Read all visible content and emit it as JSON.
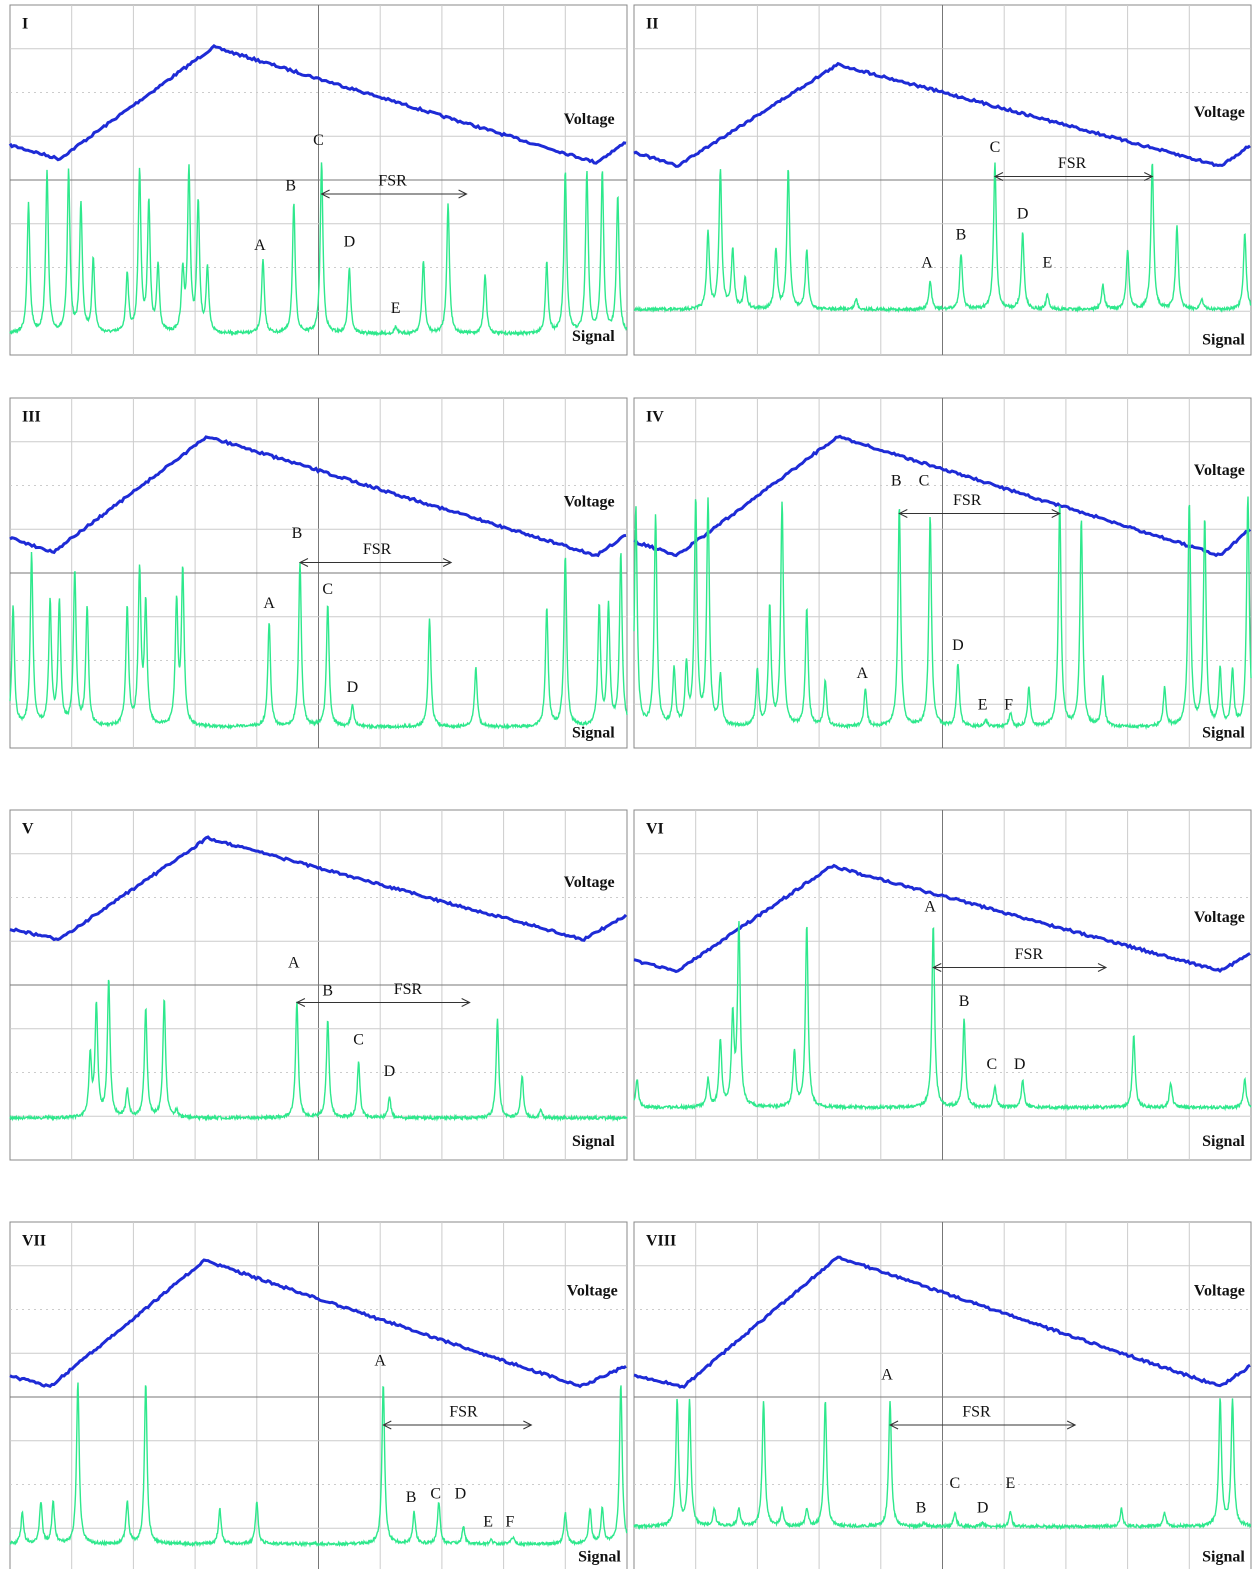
{
  "panels": [
    {
      "label": "I",
      "voltage": "Voltage",
      "signal": "Signal",
      "fsr": "FSR",
      "peaks": [
        "A",
        "B",
        "C",
        "D",
        "E"
      ]
    },
    {
      "label": "II",
      "voltage": "Voltage",
      "signal": "Signal",
      "fsr": "FSR",
      "peaks": [
        "A",
        "B",
        "C",
        "D",
        "E"
      ]
    },
    {
      "label": "III",
      "voltage": "Voltage",
      "signal": "Signal",
      "fsr": "FSR",
      "peaks": [
        "A",
        "B",
        "C",
        "D"
      ]
    },
    {
      "label": "IV",
      "voltage": "Voltage",
      "signal": "Signal",
      "fsr": "FSR",
      "peaks": [
        "A",
        "B",
        "C",
        "D",
        "E",
        "F"
      ]
    },
    {
      "label": "V",
      "voltage": "Voltage",
      "signal": "Signal",
      "fsr": "FSR",
      "peaks": [
        "A",
        "B",
        "C",
        "D"
      ]
    },
    {
      "label": "VI",
      "voltage": "Voltage",
      "signal": "Signal",
      "fsr": "FSR",
      "peaks": [
        "A",
        "B",
        "C",
        "D"
      ]
    },
    {
      "label": "VII",
      "voltage": "Voltage",
      "signal": "Signal",
      "fsr": "FSR",
      "peaks": [
        "A",
        "B",
        "C",
        "D",
        "E",
        "F"
      ]
    },
    {
      "label": "VIII",
      "voltage": "Voltage",
      "signal": "Signal",
      "fsr": "FSR",
      "peaks": [
        "A",
        "B",
        "C",
        "D",
        "E"
      ]
    }
  ]
}
